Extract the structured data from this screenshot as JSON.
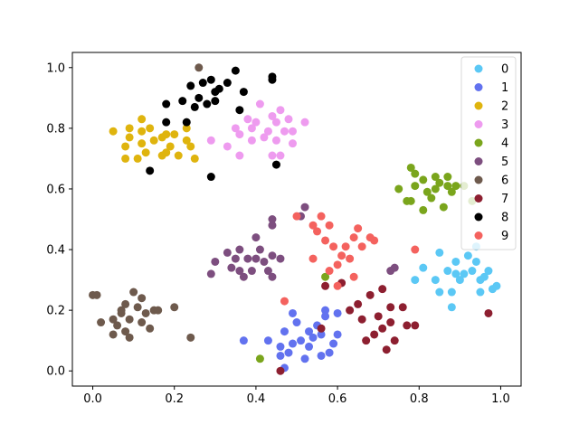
{
  "chart_data": {
    "type": "scatter",
    "title": "",
    "xlabel": "",
    "ylabel": "",
    "xlim": [
      -0.05,
      1.05
    ],
    "ylim": [
      -0.05,
      1.05
    ],
    "xticks": [
      "0.0",
      "0.2",
      "0.4",
      "0.6",
      "0.8",
      "1.0"
    ],
    "yticks": [
      "0.0",
      "0.2",
      "0.4",
      "0.6",
      "0.8",
      "1.0"
    ],
    "grid": false,
    "legend_position": "top-right",
    "series": [
      {
        "name": "0",
        "color": "#5bc8f5",
        "points": [
          [
            0.79,
            0.3
          ],
          [
            0.81,
            0.34
          ],
          [
            0.84,
            0.3
          ],
          [
            0.85,
            0.39
          ],
          [
            0.87,
            0.33
          ],
          [
            0.88,
            0.26
          ],
          [
            0.89,
            0.32
          ],
          [
            0.89,
            0.36
          ],
          [
            0.9,
            0.3
          ],
          [
            0.91,
            0.32
          ],
          [
            0.92,
            0.38
          ],
          [
            0.93,
            0.33
          ],
          [
            0.94,
            0.36
          ],
          [
            0.95,
            0.3
          ],
          [
            0.95,
            0.26
          ],
          [
            0.96,
            0.31
          ],
          [
            0.97,
            0.33
          ],
          [
            0.98,
            0.27
          ],
          [
            0.99,
            0.28
          ],
          [
            0.88,
            0.21
          ],
          [
            0.85,
            0.26
          ],
          [
            0.94,
            0.41
          ]
        ]
      },
      {
        "name": "1",
        "color": "#6272ef",
        "points": [
          [
            0.37,
            0.1
          ],
          [
            0.43,
            0.1
          ],
          [
            0.46,
            0.08
          ],
          [
            0.47,
            0.13
          ],
          [
            0.48,
            0.06
          ],
          [
            0.49,
            0.09
          ],
          [
            0.5,
            0.16
          ],
          [
            0.51,
            0.1
          ],
          [
            0.52,
            0.04
          ],
          [
            0.53,
            0.08
          ],
          [
            0.53,
            0.13
          ],
          [
            0.54,
            0.11
          ],
          [
            0.55,
            0.15
          ],
          [
            0.56,
            0.05
          ],
          [
            0.56,
            0.12
          ],
          [
            0.57,
            0.18
          ],
          [
            0.57,
            0.2
          ],
          [
            0.58,
            0.06
          ],
          [
            0.59,
            0.09
          ],
          [
            0.6,
            0.12
          ],
          [
            0.6,
            0.19
          ],
          [
            0.49,
            0.19
          ],
          [
            0.46,
            0.05
          ],
          [
            0.47,
            0.01
          ]
        ]
      },
      {
        "name": "2",
        "color": "#dfb40e",
        "points": [
          [
            0.05,
            0.79
          ],
          [
            0.08,
            0.74
          ],
          [
            0.08,
            0.7
          ],
          [
            0.09,
            0.77
          ],
          [
            0.09,
            0.8
          ],
          [
            0.11,
            0.7
          ],
          [
            0.12,
            0.83
          ],
          [
            0.12,
            0.75
          ],
          [
            0.12,
            0.79
          ],
          [
            0.13,
            0.72
          ],
          [
            0.14,
            0.8
          ],
          [
            0.15,
            0.76
          ],
          [
            0.17,
            0.71
          ],
          [
            0.17,
            0.77
          ],
          [
            0.18,
            0.72
          ],
          [
            0.18,
            0.78
          ],
          [
            0.19,
            0.74
          ],
          [
            0.2,
            0.78
          ],
          [
            0.21,
            0.71
          ],
          [
            0.23,
            0.76
          ],
          [
            0.24,
            0.74
          ],
          [
            0.25,
            0.7
          ],
          [
            0.23,
            0.8
          ]
        ]
      },
      {
        "name": "3",
        "color": "#ee9bef",
        "points": [
          [
            0.29,
            0.76
          ],
          [
            0.33,
            0.74
          ],
          [
            0.35,
            0.8
          ],
          [
            0.36,
            0.71
          ],
          [
            0.36,
            0.78
          ],
          [
            0.38,
            0.83
          ],
          [
            0.39,
            0.76
          ],
          [
            0.39,
            0.8
          ],
          [
            0.4,
            0.82
          ],
          [
            0.41,
            0.88
          ],
          [
            0.42,
            0.77
          ],
          [
            0.43,
            0.79
          ],
          [
            0.44,
            0.84
          ],
          [
            0.45,
            0.82
          ],
          [
            0.45,
            0.76
          ],
          [
            0.46,
            0.86
          ],
          [
            0.47,
            0.79
          ],
          [
            0.48,
            0.83
          ],
          [
            0.49,
            0.75
          ],
          [
            0.49,
            0.79
          ],
          [
            0.52,
            0.82
          ],
          [
            0.44,
            0.71
          ],
          [
            0.46,
            0.71
          ]
        ]
      },
      {
        "name": "4",
        "color": "#7aa51c",
        "points": [
          [
            0.41,
            0.04
          ],
          [
            0.57,
            0.31
          ],
          [
            0.75,
            0.6
          ],
          [
            0.77,
            0.56
          ],
          [
            0.78,
            0.67
          ],
          [
            0.78,
            0.56
          ],
          [
            0.79,
            0.65
          ],
          [
            0.79,
            0.61
          ],
          [
            0.81,
            0.63
          ],
          [
            0.81,
            0.53
          ],
          [
            0.82,
            0.59
          ],
          [
            0.83,
            0.57
          ],
          [
            0.84,
            0.6
          ],
          [
            0.84,
            0.64
          ],
          [
            0.85,
            0.62
          ],
          [
            0.86,
            0.54
          ],
          [
            0.87,
            0.61
          ],
          [
            0.88,
            0.59
          ],
          [
            0.89,
            0.61
          ],
          [
            0.91,
            0.61
          ],
          [
            0.93,
            0.56
          ],
          [
            0.87,
            0.64
          ]
        ]
      },
      {
        "name": "5",
        "color": "#7d4e7f",
        "points": [
          [
            0.29,
            0.32
          ],
          [
            0.3,
            0.36
          ],
          [
            0.33,
            0.39
          ],
          [
            0.34,
            0.34
          ],
          [
            0.35,
            0.37
          ],
          [
            0.36,
            0.33
          ],
          [
            0.36,
            0.4
          ],
          [
            0.37,
            0.31
          ],
          [
            0.38,
            0.37
          ],
          [
            0.39,
            0.33
          ],
          [
            0.4,
            0.44
          ],
          [
            0.4,
            0.37
          ],
          [
            0.41,
            0.4
          ],
          [
            0.42,
            0.36
          ],
          [
            0.43,
            0.33
          ],
          [
            0.44,
            0.31
          ],
          [
            0.44,
            0.38
          ],
          [
            0.44,
            0.48
          ],
          [
            0.44,
            0.5
          ],
          [
            0.46,
            0.37
          ],
          [
            0.51,
            0.51
          ],
          [
            0.52,
            0.54
          ],
          [
            0.73,
            0.33
          ],
          [
            0.74,
            0.34
          ]
        ]
      },
      {
        "name": "6",
        "color": "#6e5a4d",
        "points": [
          [
            0.0,
            0.25
          ],
          [
            0.01,
            0.25
          ],
          [
            0.02,
            0.16
          ],
          [
            0.05,
            0.12
          ],
          [
            0.05,
            0.17
          ],
          [
            0.06,
            0.15
          ],
          [
            0.07,
            0.19
          ],
          [
            0.07,
            0.2
          ],
          [
            0.08,
            0.22
          ],
          [
            0.08,
            0.13
          ],
          [
            0.09,
            0.11
          ],
          [
            0.09,
            0.17
          ],
          [
            0.1,
            0.26
          ],
          [
            0.11,
            0.21
          ],
          [
            0.12,
            0.24
          ],
          [
            0.12,
            0.16
          ],
          [
            0.13,
            0.19
          ],
          [
            0.14,
            0.14
          ],
          [
            0.15,
            0.2
          ],
          [
            0.16,
            0.2
          ],
          [
            0.2,
            0.21
          ],
          [
            0.24,
            0.11
          ],
          [
            0.26,
            1.0
          ]
        ]
      },
      {
        "name": "7",
        "color": "#8d1f30",
        "points": [
          [
            0.57,
            0.28
          ],
          [
            0.61,
            0.29
          ],
          [
            0.63,
            0.2
          ],
          [
            0.65,
            0.22
          ],
          [
            0.66,
            0.17
          ],
          [
            0.67,
            0.1
          ],
          [
            0.68,
            0.25
          ],
          [
            0.69,
            0.12
          ],
          [
            0.7,
            0.18
          ],
          [
            0.71,
            0.27
          ],
          [
            0.71,
            0.14
          ],
          [
            0.72,
            0.07
          ],
          [
            0.73,
            0.16
          ],
          [
            0.73,
            0.21
          ],
          [
            0.74,
            0.1
          ],
          [
            0.76,
            0.21
          ],
          [
            0.77,
            0.15
          ],
          [
            0.79,
            0.15
          ],
          [
            0.56,
            0.14
          ],
          [
            0.46,
            0.0
          ],
          [
            0.97,
            0.19
          ]
        ]
      },
      {
        "name": "8",
        "color": "#000000",
        "points": [
          [
            0.14,
            0.66
          ],
          [
            0.18,
            0.82
          ],
          [
            0.18,
            0.88
          ],
          [
            0.22,
            0.89
          ],
          [
            0.23,
            0.82
          ],
          [
            0.24,
            0.94
          ],
          [
            0.25,
            0.87
          ],
          [
            0.26,
            0.9
          ],
          [
            0.27,
            0.95
          ],
          [
            0.28,
            0.88
          ],
          [
            0.29,
            0.64
          ],
          [
            0.29,
            0.96
          ],
          [
            0.3,
            0.92
          ],
          [
            0.3,
            0.89
          ],
          [
            0.31,
            0.93
          ],
          [
            0.33,
            0.95
          ],
          [
            0.35,
            0.99
          ],
          [
            0.36,
            0.86
          ],
          [
            0.37,
            0.92
          ],
          [
            0.44,
            0.96
          ],
          [
            0.44,
            0.97
          ],
          [
            0.45,
            0.68
          ]
        ]
      },
      {
        "name": "9",
        "color": "#f4625e",
        "points": [
          [
            0.47,
            0.23
          ],
          [
            0.5,
            0.51
          ],
          [
            0.54,
            0.37
          ],
          [
            0.54,
            0.48
          ],
          [
            0.55,
            0.46
          ],
          [
            0.56,
            0.51
          ],
          [
            0.57,
            0.43
          ],
          [
            0.58,
            0.33
          ],
          [
            0.58,
            0.48
          ],
          [
            0.59,
            0.41
          ],
          [
            0.6,
            0.35
          ],
          [
            0.6,
            0.28
          ],
          [
            0.61,
            0.38
          ],
          [
            0.62,
            0.41
          ],
          [
            0.63,
            0.37
          ],
          [
            0.64,
            0.31
          ],
          [
            0.64,
            0.44
          ],
          [
            0.65,
            0.47
          ],
          [
            0.66,
            0.41
          ],
          [
            0.68,
            0.44
          ],
          [
            0.69,
            0.43
          ],
          [
            0.79,
            0.4
          ]
        ]
      }
    ]
  }
}
